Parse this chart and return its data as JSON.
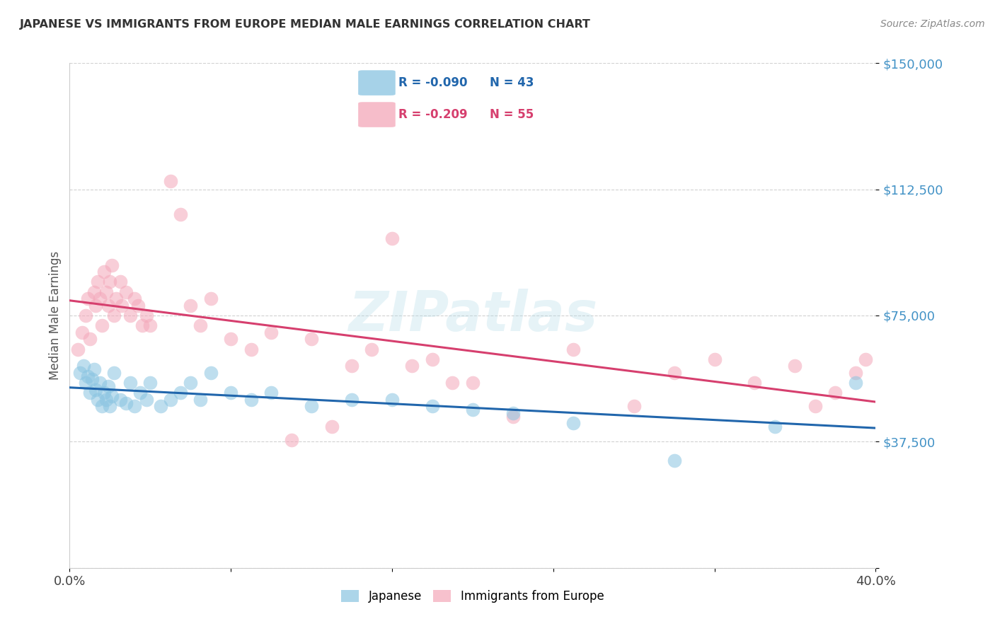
{
  "title": "JAPANESE VS IMMIGRANTS FROM EUROPE MEDIAN MALE EARNINGS CORRELATION CHART",
  "source": "Source: ZipAtlas.com",
  "ylabel": "Median Male Earnings",
  "yticks": [
    0,
    37500,
    75000,
    112500,
    150000
  ],
  "ytick_labels": [
    "",
    "$37,500",
    "$75,000",
    "$112,500",
    "$150,000"
  ],
  "xlim": [
    0.0,
    0.4
  ],
  "ylim": [
    0,
    150000
  ],
  "watermark": "ZIPatlas",
  "legend_r1": "-0.090",
  "legend_n1": "43",
  "legend_r2": "-0.209",
  "legend_n2": "55",
  "legend_label1": "Japanese",
  "legend_label2": "Immigrants from Europe",
  "color_blue": "#89c4e1",
  "color_pink": "#f4a7b9",
  "color_blue_line": "#2166ac",
  "color_pink_line": "#d63f6e",
  "color_ytick": "#4292c6",
  "title_color": "#333333",
  "source_color": "#888888",
  "japanese_x": [
    0.005,
    0.007,
    0.008,
    0.009,
    0.01,
    0.011,
    0.012,
    0.013,
    0.014,
    0.015,
    0.016,
    0.017,
    0.018,
    0.019,
    0.02,
    0.021,
    0.022,
    0.025,
    0.028,
    0.03,
    0.032,
    0.035,
    0.038,
    0.04,
    0.045,
    0.05,
    0.055,
    0.06,
    0.065,
    0.07,
    0.08,
    0.09,
    0.1,
    0.12,
    0.14,
    0.16,
    0.18,
    0.2,
    0.22,
    0.25,
    0.3,
    0.35,
    0.39
  ],
  "japanese_y": [
    58000,
    60000,
    55000,
    57000,
    52000,
    56000,
    59000,
    53000,
    50000,
    55000,
    48000,
    52000,
    50000,
    54000,
    48000,
    51000,
    58000,
    50000,
    49000,
    55000,
    48000,
    52000,
    50000,
    55000,
    48000,
    50000,
    52000,
    55000,
    50000,
    58000,
    52000,
    50000,
    52000,
    48000,
    50000,
    50000,
    48000,
    47000,
    46000,
    43000,
    32000,
    42000,
    55000
  ],
  "europe_x": [
    0.004,
    0.006,
    0.008,
    0.009,
    0.01,
    0.012,
    0.013,
    0.014,
    0.015,
    0.016,
    0.017,
    0.018,
    0.019,
    0.02,
    0.021,
    0.022,
    0.023,
    0.025,
    0.026,
    0.028,
    0.03,
    0.032,
    0.034,
    0.036,
    0.038,
    0.04,
    0.05,
    0.055,
    0.06,
    0.065,
    0.07,
    0.08,
    0.09,
    0.1,
    0.12,
    0.14,
    0.16,
    0.18,
    0.2,
    0.22,
    0.25,
    0.28,
    0.3,
    0.32,
    0.34,
    0.36,
    0.37,
    0.38,
    0.39,
    0.395,
    0.15,
    0.17,
    0.19,
    0.13,
    0.11
  ],
  "europe_y": [
    65000,
    70000,
    75000,
    80000,
    68000,
    82000,
    78000,
    85000,
    80000,
    72000,
    88000,
    82000,
    78000,
    85000,
    90000,
    75000,
    80000,
    85000,
    78000,
    82000,
    75000,
    80000,
    78000,
    72000,
    75000,
    72000,
    115000,
    105000,
    78000,
    72000,
    80000,
    68000,
    65000,
    70000,
    68000,
    60000,
    98000,
    62000,
    55000,
    45000,
    65000,
    48000,
    58000,
    62000,
    55000,
    60000,
    48000,
    52000,
    58000,
    62000,
    65000,
    60000,
    55000,
    42000,
    38000
  ]
}
